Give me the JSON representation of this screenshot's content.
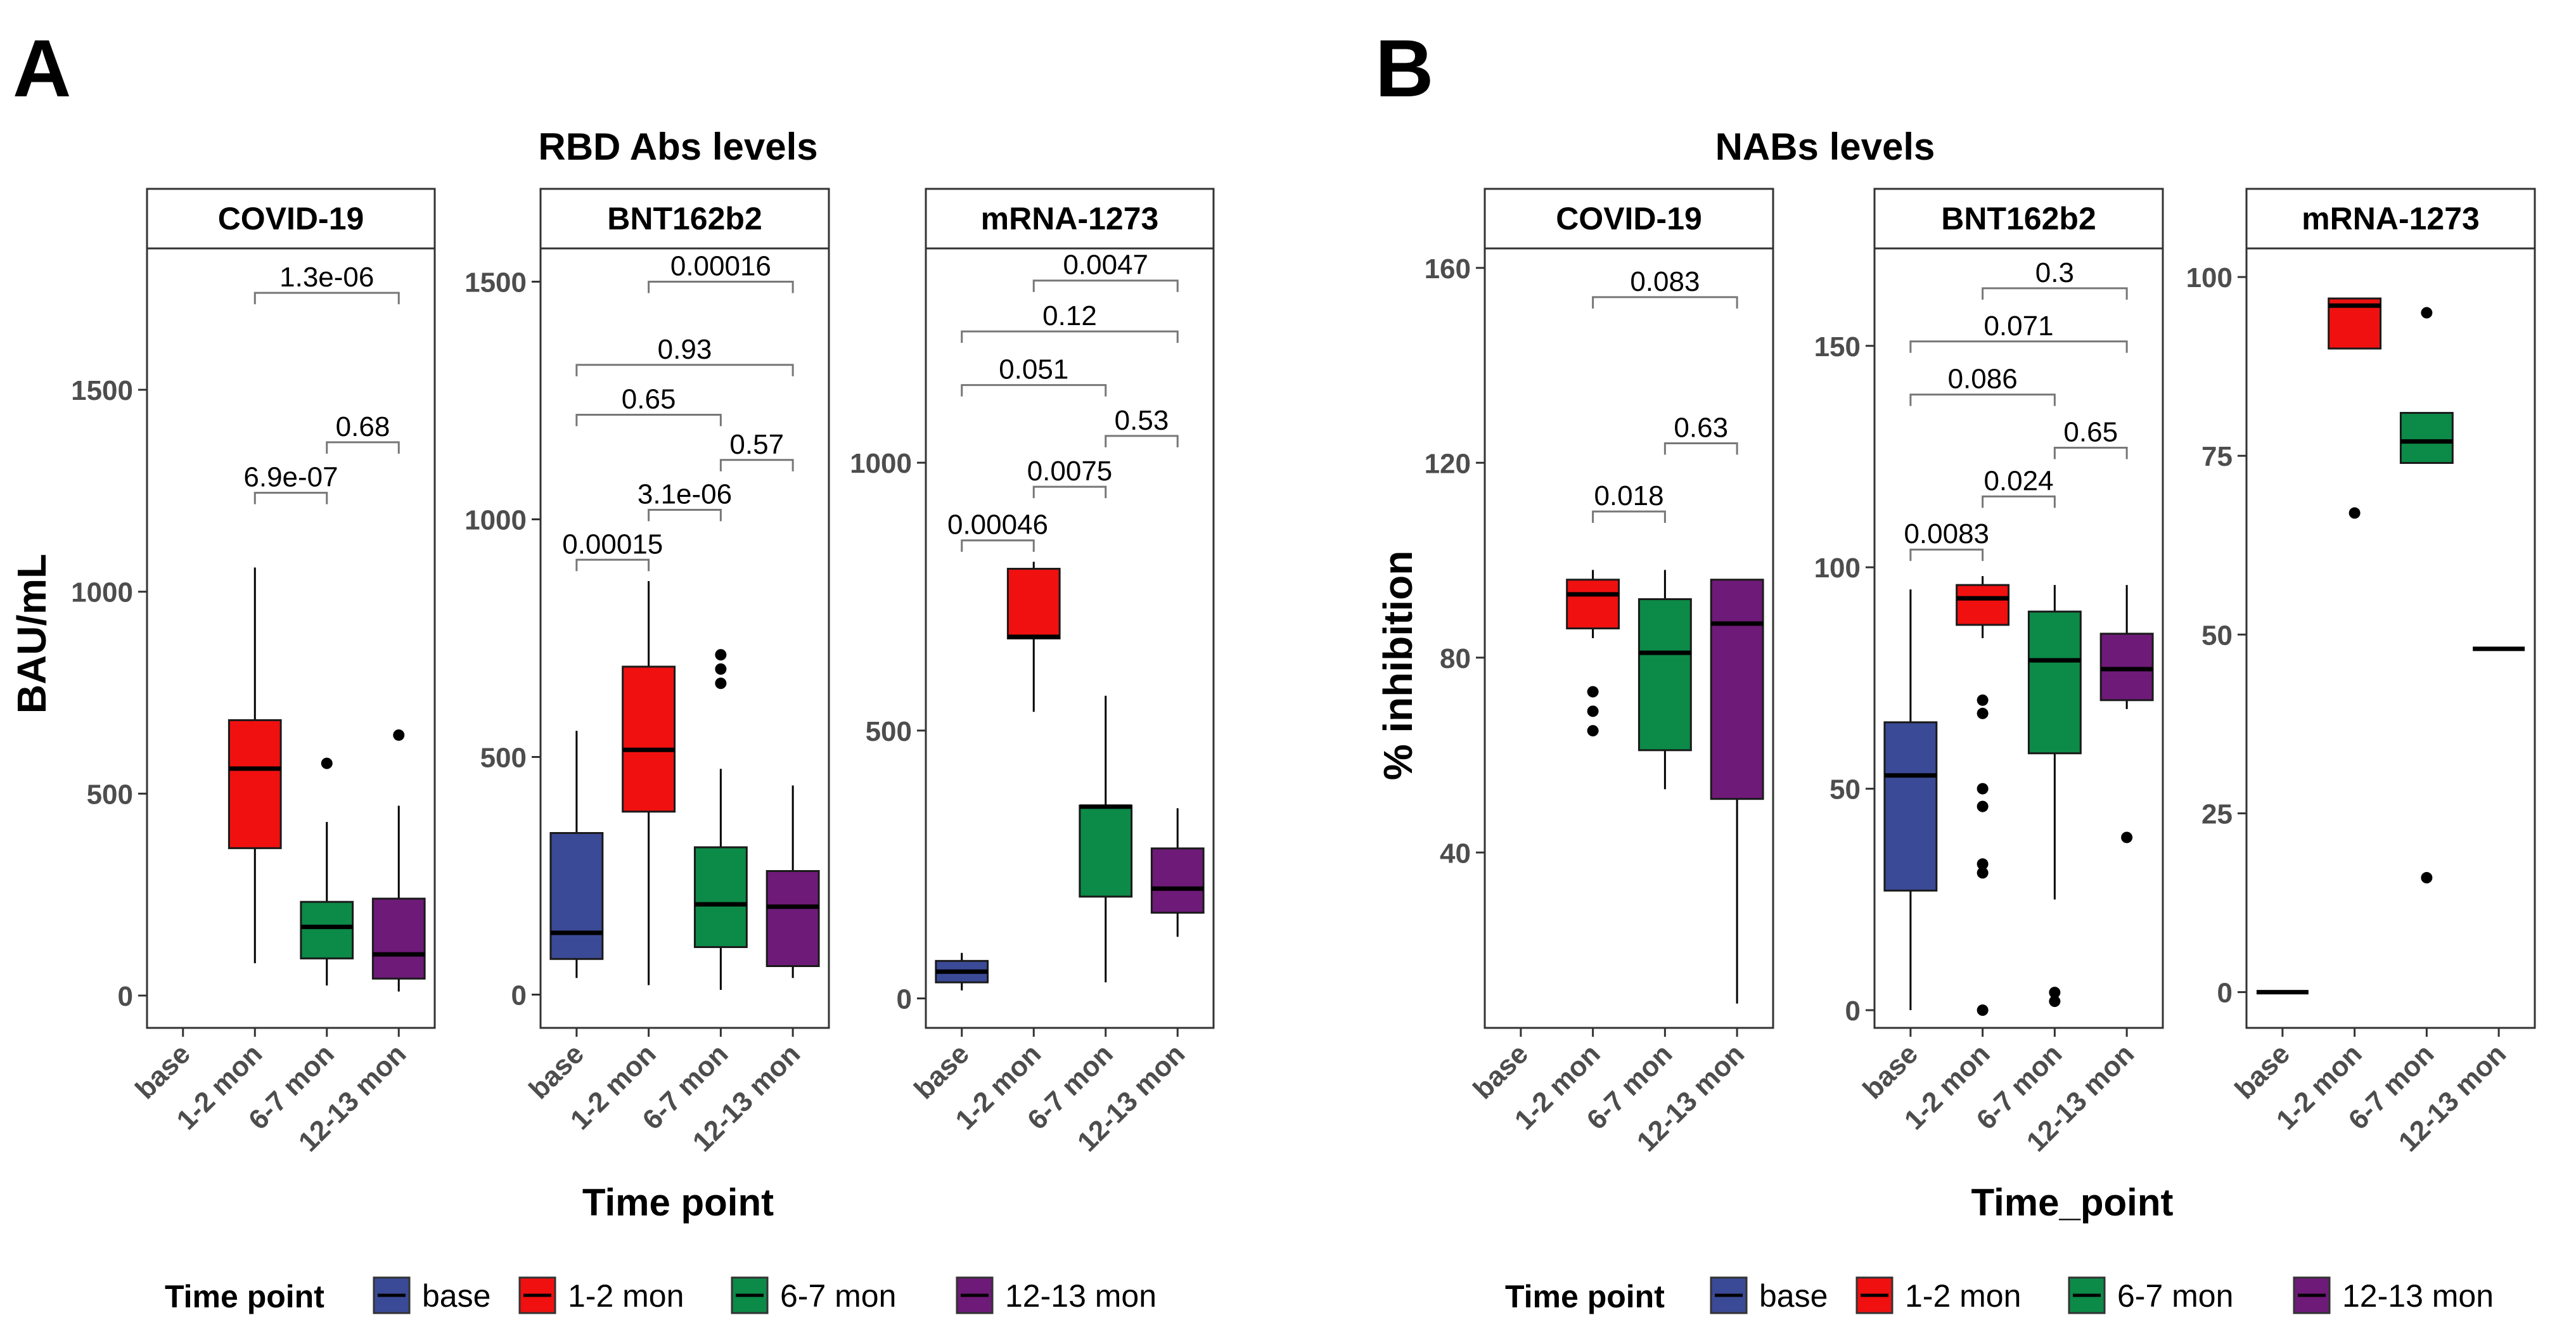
{
  "chart_data": {
    "type": "box",
    "panel_letters": {
      "a": "A",
      "b": "B"
    },
    "legend": {
      "title": "Time point",
      "items": [
        {
          "label": "base",
          "color": "#3B4A96"
        },
        {
          "label": "1-2 mon",
          "color": "#F01010"
        },
        {
          "label": "6-7 mon",
          "color": "#0C8A48"
        },
        {
          "label": "12-13 mon",
          "color": "#6E1A78"
        }
      ]
    },
    "figures": [
      {
        "id": "A",
        "title": "RBD Abs levels",
        "ylabel": "BAU/mL",
        "xlabel": "Time point",
        "categories": [
          "base",
          "1-2 mon",
          "6-7 mon",
          "12-13 mon"
        ],
        "facets": [
          {
            "name": "COVID-19",
            "ylim": [
              -80,
              1850
            ],
            "yticks": [
              {
                "value": 0,
                "label": "0"
              },
              {
                "value": 500,
                "label": "500"
              },
              {
                "value": 1000,
                "label": "1000"
              },
              {
                "value": 1500,
                "label": "1500"
              }
            ],
            "boxes": [
              {
                "category": "1-2 mon",
                "whisker_low": 80,
                "q1": 365,
                "median": 562,
                "q3": 682,
                "whisker_high": 1060,
                "outliers": []
              },
              {
                "category": "6-7 mon",
                "whisker_low": 25,
                "q1": 92,
                "median": 170,
                "q3": 232,
                "whisker_high": 430,
                "outliers": [
                  575
                ]
              },
              {
                "category": "12-13 mon",
                "whisker_low": 10,
                "q1": 42,
                "median": 102,
                "q3": 240,
                "whisker_high": 470,
                "outliers": [
                  645
                ]
              }
            ],
            "comparisons": [
              {
                "from": "1-2 mon",
                "to": "12-13 mon",
                "label": "1.3e-06",
                "y": 1740
              },
              {
                "from": "6-7 mon",
                "to": "12-13 mon",
                "label": "0.68",
                "y": 1370
              },
              {
                "from": "1-2 mon",
                "to": "6-7 mon",
                "label": "6.9e-07",
                "y": 1245
              }
            ]
          },
          {
            "name": "BNT162b2",
            "ylim": [
              -70,
              1570
            ],
            "yticks": [
              {
                "value": 0,
                "label": "0"
              },
              {
                "value": 500,
                "label": "500"
              },
              {
                "value": 1000,
                "label": "1000"
              },
              {
                "value": 1500,
                "label": "1500"
              }
            ],
            "boxes": [
              {
                "category": "base",
                "whisker_low": 35,
                "q1": 75,
                "median": 130,
                "q3": 340,
                "whisker_high": 555,
                "outliers": []
              },
              {
                "category": "1-2 mon",
                "whisker_low": 20,
                "q1": 385,
                "median": 515,
                "q3": 690,
                "whisker_high": 870,
                "outliers": []
              },
              {
                "category": "6-7 mon",
                "whisker_low": 10,
                "q1": 100,
                "median": 190,
                "q3": 310,
                "whisker_high": 475,
                "outliers": [
                  655,
                  685,
                  715
                ]
              },
              {
                "category": "12-13 mon",
                "whisker_low": 35,
                "q1": 60,
                "median": 185,
                "q3": 260,
                "whisker_high": 440,
                "outliers": []
              }
            ],
            "comparisons": [
              {
                "from": "1-2 mon",
                "to": "12-13 mon",
                "label": "0.00016",
                "y": 1500
              },
              {
                "from": "base",
                "to": "12-13 mon",
                "label": "0.93",
                "y": 1325
              },
              {
                "from": "base",
                "to": "6-7 mon",
                "label": "0.65",
                "y": 1220
              },
              {
                "from": "6-7 mon",
                "to": "12-13 mon",
                "label": "0.57",
                "y": 1125
              },
              {
                "from": "1-2 mon",
                "to": "6-7 mon",
                "label": "3.1e-06",
                "y": 1020
              },
              {
                "from": "base",
                "to": "1-2 mon",
                "label": "0.00015",
                "y": 915
              }
            ]
          },
          {
            "name": "mRNA-1273",
            "ylim": [
              -55,
              1400
            ],
            "yticks": [
              {
                "value": 0,
                "label": "0"
              },
              {
                "value": 500,
                "label": "500"
              },
              {
                "value": 1000,
                "label": "1000"
              }
            ],
            "boxes": [
              {
                "category": "base",
                "whisker_low": 15,
                "q1": 30,
                "median": 50,
                "q3": 70,
                "whisker_high": 85,
                "outliers": []
              },
              {
                "category": "1-2 mon",
                "whisker_low": 535,
                "q1": 672,
                "median": 675,
                "q3": 802,
                "whisker_high": 815,
                "outliers": []
              },
              {
                "category": "6-7 mon",
                "whisker_low": 30,
                "q1": 190,
                "median": 358,
                "q3": 360,
                "whisker_high": 565,
                "outliers": []
              },
              {
                "category": "12-13 mon",
                "whisker_low": 115,
                "q1": 160,
                "median": 205,
                "q3": 280,
                "whisker_high": 355,
                "outliers": []
              }
            ],
            "comparisons": [
              {
                "from": "1-2 mon",
                "to": "12-13 mon",
                "label": "0.0047",
                "y": 1340
              },
              {
                "from": "base",
                "to": "12-13 mon",
                "label": "0.12",
                "y": 1245
              },
              {
                "from": "base",
                "to": "6-7 mon",
                "label": "0.051",
                "y": 1145
              },
              {
                "from": "6-7 mon",
                "to": "12-13 mon",
                "label": "0.53",
                "y": 1050
              },
              {
                "from": "1-2 mon",
                "to": "6-7 mon",
                "label": "0.0075",
                "y": 955
              },
              {
                "from": "base",
                "to": "1-2 mon",
                "label": "0.00046",
                "y": 855
              }
            ]
          }
        ]
      },
      {
        "id": "B",
        "title": "NABs levels",
        "ylabel": "% inhibition",
        "xlabel": "Time_point",
        "categories": [
          "base",
          "1-2 mon",
          "6-7 mon",
          "12-13 mon"
        ],
        "facets": [
          {
            "name": "COVID-19",
            "ylim": [
              4,
              164
            ],
            "yticks": [
              {
                "value": 40,
                "label": "40"
              },
              {
                "value": 80,
                "label": "80"
              },
              {
                "value": 120,
                "label": "120"
              },
              {
                "value": 160,
                "label": "160"
              }
            ],
            "boxes": [
              {
                "category": "1-2 mon",
                "whisker_low": 84,
                "q1": 86,
                "median": 93,
                "q3": 96,
                "whisker_high": 98,
                "outliers": [
                  65,
                  69,
                  73
                ]
              },
              {
                "category": "6-7 mon",
                "whisker_low": 53,
                "q1": 61,
                "median": 81,
                "q3": 92,
                "whisker_high": 98,
                "outliers": []
              },
              {
                "category": "12-13 mon",
                "whisker_low": 9,
                "q1": 51,
                "median": 87,
                "q3": 96,
                "whisker_high": 96,
                "outliers": []
              }
            ],
            "comparisons": [
              {
                "from": "1-2 mon",
                "to": "12-13 mon",
                "label": "0.083",
                "y": 154
              },
              {
                "from": "6-7 mon",
                "to": "12-13 mon",
                "label": "0.63",
                "y": 124
              },
              {
                "from": "1-2 mon",
                "to": "6-7 mon",
                "label": "0.018",
                "y": 110
              }
            ]
          },
          {
            "name": "BNT162b2",
            "ylim": [
              -4,
              172
            ],
            "yticks": [
              {
                "value": 0,
                "label": "0"
              },
              {
                "value": 50,
                "label": "50"
              },
              {
                "value": 100,
                "label": "100"
              },
              {
                "value": 150,
                "label": "150"
              }
            ],
            "boxes": [
              {
                "category": "base",
                "whisker_low": 0,
                "q1": 27,
                "median": 53,
                "q3": 65,
                "whisker_high": 95,
                "outliers": []
              },
              {
                "category": "1-2 mon",
                "whisker_low": 84,
                "q1": 87,
                "median": 93,
                "q3": 96,
                "whisker_high": 98,
                "outliers": [
                  0,
                  31,
                  33,
                  46,
                  50,
                  67,
                  70
                ]
              },
              {
                "category": "6-7 mon",
                "whisker_low": 25,
                "q1": 58,
                "median": 79,
                "q3": 90,
                "whisker_high": 96,
                "outliers": [
                  2,
                  4
                ]
              },
              {
                "category": "12-13 mon",
                "whisker_low": 68,
                "q1": 70,
                "median": 77,
                "q3": 85,
                "whisker_high": 96,
                "outliers": [
                  39
                ]
              }
            ],
            "comparisons": [
              {
                "from": "1-2 mon",
                "to": "12-13 mon",
                "label": "0.3",
                "y": 163
              },
              {
                "from": "base",
                "to": "12-13 mon",
                "label": "0.071",
                "y": 151
              },
              {
                "from": "base",
                "to": "6-7 mon",
                "label": "0.086",
                "y": 139
              },
              {
                "from": "6-7 mon",
                "to": "12-13 mon",
                "label": "0.65",
                "y": 127
              },
              {
                "from": "1-2 mon",
                "to": "6-7 mon",
                "label": "0.024",
                "y": 116
              },
              {
                "from": "base",
                "to": "1-2 mon",
                "label": "0.0083",
                "y": 104
              }
            ]
          },
          {
            "name": "mRNA-1273",
            "ylim": [
              -5,
              104
            ],
            "yticks": [
              {
                "value": 0,
                "label": "0"
              },
              {
                "value": 25,
                "label": "25"
              },
              {
                "value": 50,
                "label": "50"
              },
              {
                "value": 75,
                "label": "75"
              },
              {
                "value": 100,
                "label": "100"
              }
            ],
            "boxes": [
              {
                "category": "base",
                "whisker_low": 0,
                "q1": 0,
                "median": 0,
                "q3": 0,
                "whisker_high": 0,
                "outliers": []
              },
              {
                "category": "1-2 mon",
                "whisker_low": 90,
                "q1": 90,
                "median": 96,
                "q3": 97,
                "whisker_high": 97,
                "outliers": [
                  67
                ]
              },
              {
                "category": "6-7 mon",
                "whisker_low": 74,
                "q1": 74,
                "median": 77,
                "q3": 81,
                "whisker_high": 81,
                "outliers": [
                  16,
                  95
                ]
              },
              {
                "category": "12-13 mon",
                "whisker_low": 48,
                "q1": 48,
                "median": 48,
                "q3": 48,
                "whisker_high": 48,
                "outliers": []
              }
            ],
            "comparisons": []
          }
        ]
      }
    ]
  }
}
